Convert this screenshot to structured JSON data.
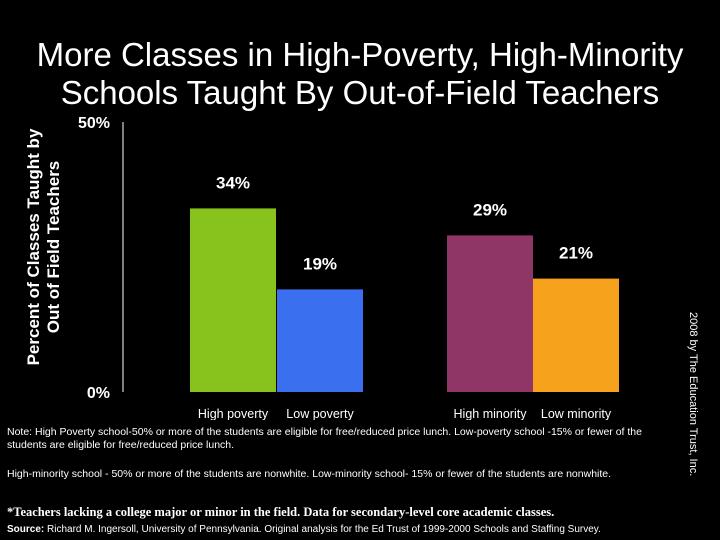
{
  "title": "More Classes in High-Poverty, High-Minority Schools Taught By Out-of-Field Teachers",
  "side_credit": "2008 by The Education Trust, Inc.",
  "notes": [
    "Note: High Poverty school-50% or more of the students are eligible for free/reduced price lunch.  Low-poverty school -15% or fewer of the students are eligible for free/reduced price lunch.",
    "High-minority school - 50% or more of the students are nonwhite. Low-minority school- 15% or fewer of the students are nonwhite."
  ],
  "footnote": "*Teachers lacking a college major or minor in the field.  Data for secondary-level core academic classes.",
  "source": {
    "label": "Source:",
    "text": " Richard M. Ingersoll, University of Pennsylvania.  Original analysis for the Ed Trust of 1999-2000 Schools and Staffing Survey."
  },
  "colors": {
    "background": "#000000",
    "text": "#ffffff",
    "axis": "#ffffff",
    "bars": [
      "#88c21c",
      "#3a6ff0",
      "#8f3666",
      "#f7a21c"
    ]
  },
  "chart_data": {
    "type": "bar",
    "ylabel": "Percent of Classes Taught by Out of Field Teachers",
    "ylim": [
      0,
      50
    ],
    "y_ticks": [
      "0%",
      "50%"
    ],
    "categories": [
      "High poverty",
      "Low poverty",
      "High minority",
      "Low minority"
    ],
    "values": [
      34,
      19,
      29,
      21
    ],
    "value_labels": [
      "34%",
      "19%",
      "29%",
      "21%"
    ],
    "grid": false,
    "legend": "none"
  }
}
